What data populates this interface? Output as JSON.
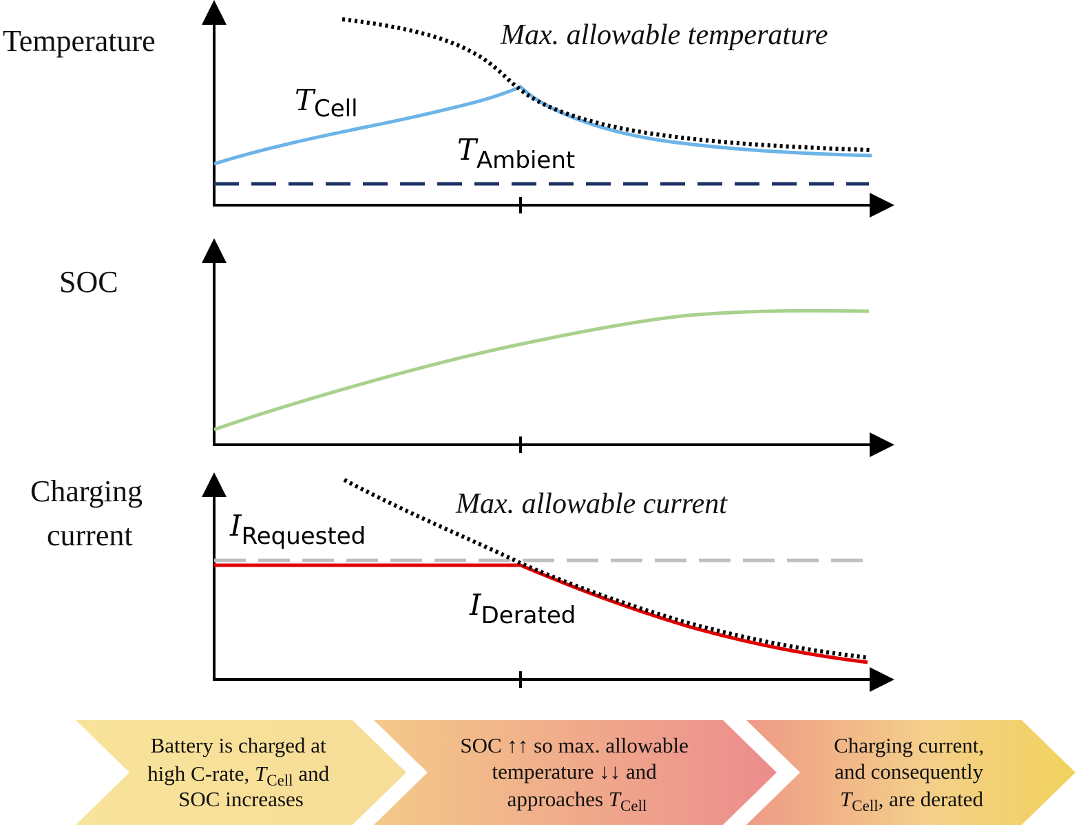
{
  "panels": {
    "temperature": {
      "y_label": "Temperature",
      "max_curve_label": "Max. allowable temperature",
      "cell_symbol": "T",
      "cell_subscript": "Cell",
      "ambient_symbol": "T",
      "ambient_subscript": "Ambient"
    },
    "soc": {
      "y_label": "SOC"
    },
    "current": {
      "y_label_line1": "Charging",
      "y_label_line2": "current",
      "max_curve_label": "Max. allowable current",
      "requested_symbol": "I",
      "requested_subscript": "Requested",
      "derated_symbol": "I",
      "derated_subscript": "Derated"
    }
  },
  "stages": [
    {
      "line1": "Battery is charged at",
      "line2_pre": "high C-rate, ",
      "line2_sym": "T",
      "line2_sub": "Cell",
      "line2_post": " and",
      "line3": "SOC increases"
    },
    {
      "line1": "SOC ↑↑ so max. allowable",
      "line2": "temperature ↓↓ and",
      "line3_pre": "approaches ",
      "line3_sym": "T",
      "line3_sub": "Cell"
    },
    {
      "line1": "Charging current,",
      "line2": "and consequently",
      "line3_sym": "T",
      "line3_sub": "Cell",
      "line3_post": ", are derated"
    }
  ],
  "colors": {
    "cell_temperature": "#6cb4e8",
    "ambient_temperature": "#1f3266",
    "soc": "#a9d18e",
    "requested_current": "#bfbfbf",
    "derated_current": "#e00000",
    "max_allowable": "#000000",
    "axis": "#000000",
    "stage1_fill": "#f8e39a",
    "stage2_fill_start": "#f4c98a",
    "stage2_fill_end": "#ec8c8c",
    "stage3_fill_start": "#ee9a86",
    "stage3_fill_end": "#f1d25c"
  }
}
